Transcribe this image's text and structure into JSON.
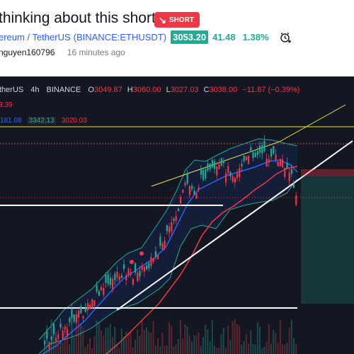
{
  "idea": {
    "title": " thinking about this short",
    "badge": "SHORT",
    "symbol_name": "ereum / TetherUS",
    "symbol_exchange": "(BINANCE:ETHUSDT)",
    "price": "3053.20",
    "change": "41.48",
    "change_pct": "1.38%",
    "author": "nguyen160796",
    "time_ago": "16 minutes ago"
  },
  "chart_header": {
    "symbol": "therUS",
    "timeframe": "4h",
    "exchange": "BINANCE",
    "ohlc": [
      {
        "k": "O",
        "v": "3049.87"
      },
      {
        "k": "H",
        "v": "3060.00"
      },
      {
        "k": "L",
        "v": "3027.03"
      },
      {
        "k": "C",
        "v": "3038.00"
      }
    ],
    "change": "−11.87 (−0.39%)",
    "indicator1": "3.39",
    "indicator2": [
      "181.08",
      "3342.13",
      "3020.03"
    ]
  },
  "colors": {
    "up": "#22ab94",
    "down": "#f23645",
    "bg": "#131722",
    "basis": "#2962ff",
    "ma": "#f23645",
    "trend": "#ffffff",
    "channel": "#f5e543"
  },
  "icons": {
    "badge_icon": "arrow-down-right-icon",
    "alarm": "alarm-clock-icon"
  }
}
